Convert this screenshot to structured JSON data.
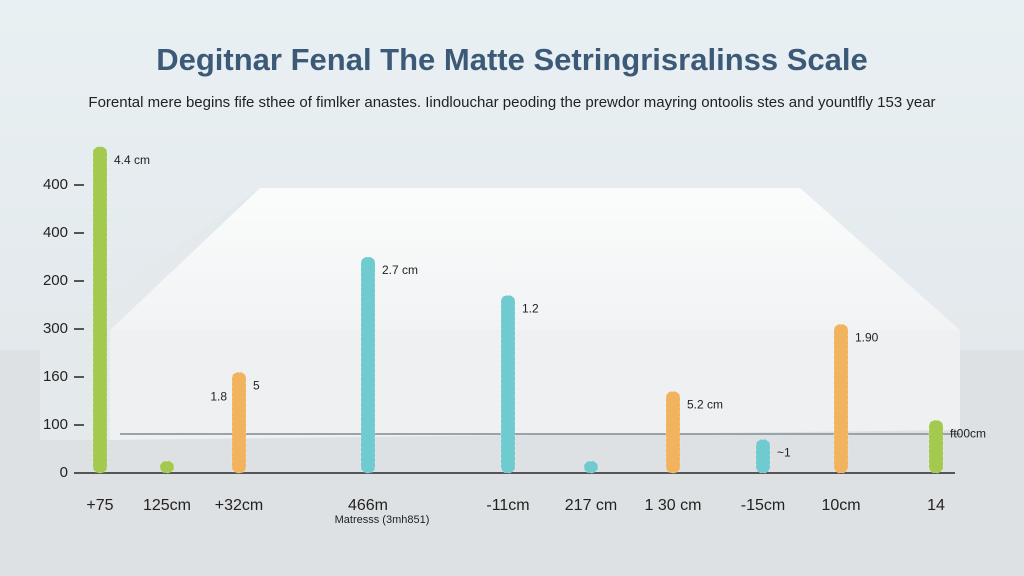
{
  "chart_data": {
    "type": "bar",
    "title": "Degitnar Fenal The Matte Setringrisralinss Scale",
    "subtitle": "Forental mere begins fife sthee of fimlker anastes. Iindlouchar peoding the prewdor mayring ontoolis stes and yountlfly 153 year",
    "x_axis_label": "Matresss (3mh851)",
    "y_axis_labels": [
      "0",
      "100",
      "160",
      "300",
      "200",
      "400",
      "400"
    ],
    "ylim": [
      0,
      7
    ],
    "categories": [
      "+75",
      "125cm",
      "+32cm",
      "466m",
      "-11cm",
      "217 cm",
      "1 30 cm",
      "-15cm",
      "10cm",
      "14"
    ],
    "values": [
      6.8,
      0.1,
      2.1,
      4.5,
      3.7,
      0.15,
      1.7,
      0.7,
      3.1,
      1.1
    ],
    "colors": [
      "#a3c94f",
      "#a3c94f",
      "#f2b35e",
      "#6fcbd0",
      "#6fcbd0",
      "#6fcbd0",
      "#f2b35e",
      "#6fcbd0",
      "#f2b35e",
      "#a3c94f"
    ],
    "annotations": [
      {
        "bar": 0,
        "text": "4.4 cm"
      },
      {
        "bar": 2,
        "text": "1.8"
      },
      {
        "bar": 2,
        "text": "5"
      },
      {
        "bar": 3,
        "text": "2.7 cm"
      },
      {
        "bar": 4,
        "text": "1.2"
      },
      {
        "bar": 6,
        "text": "5.2 cm"
      },
      {
        "bar": 7,
        "text": "~1"
      },
      {
        "bar": 8,
        "text": "1.90"
      },
      {
        "bar": 9,
        "text": "ft00cm"
      }
    ]
  }
}
